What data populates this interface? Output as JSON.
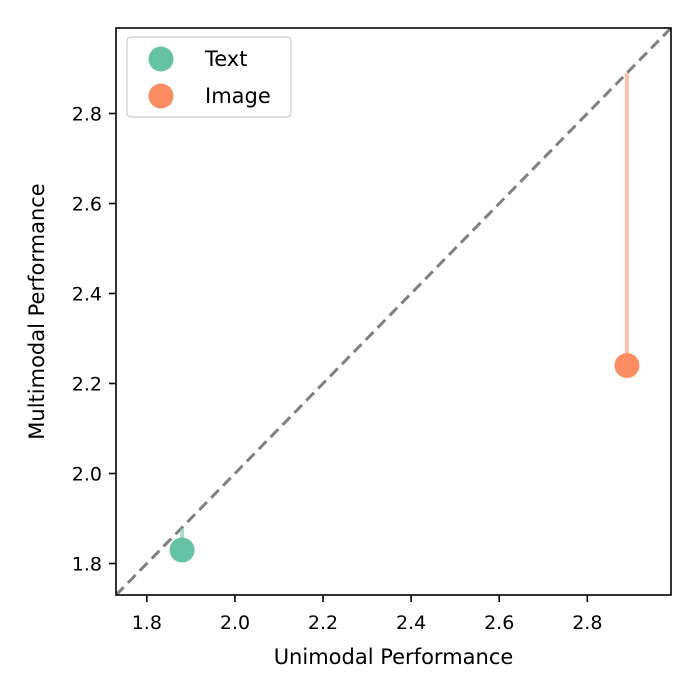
{
  "chart_data": {
    "type": "scatter",
    "title": "",
    "xlabel": "Unimodal Performance",
    "ylabel": "Multimodal Performance",
    "xlim": [
      1.73,
      2.99
    ],
    "ylim": [
      1.73,
      2.99
    ],
    "xticks": [
      1.8,
      2.0,
      2.2,
      2.4,
      2.6,
      2.8
    ],
    "yticks": [
      1.8,
      2.0,
      2.2,
      2.4,
      2.6,
      2.8
    ],
    "xtick_labels": [
      "1.8",
      "2.0",
      "2.2",
      "2.4",
      "2.6",
      "2.8"
    ],
    "ytick_labels": [
      "1.8",
      "2.0",
      "2.2",
      "2.4",
      "2.6",
      "2.8"
    ],
    "grid": false,
    "legend_position": "top-left",
    "reference_line": {
      "style": "dashed",
      "color": "#808080",
      "from": [
        1.73,
        1.73
      ],
      "to": [
        2.99,
        2.99
      ]
    },
    "series": [
      {
        "name": "Text",
        "color": "#66c2a5",
        "points": [
          {
            "x": 1.88,
            "y": 1.83,
            "diagonal_y": 1.88
          }
        ]
      },
      {
        "name": "Image",
        "color": "#fc8d62",
        "points": [
          {
            "x": 2.89,
            "y": 2.24,
            "diagonal_y": 2.89
          }
        ]
      }
    ]
  }
}
